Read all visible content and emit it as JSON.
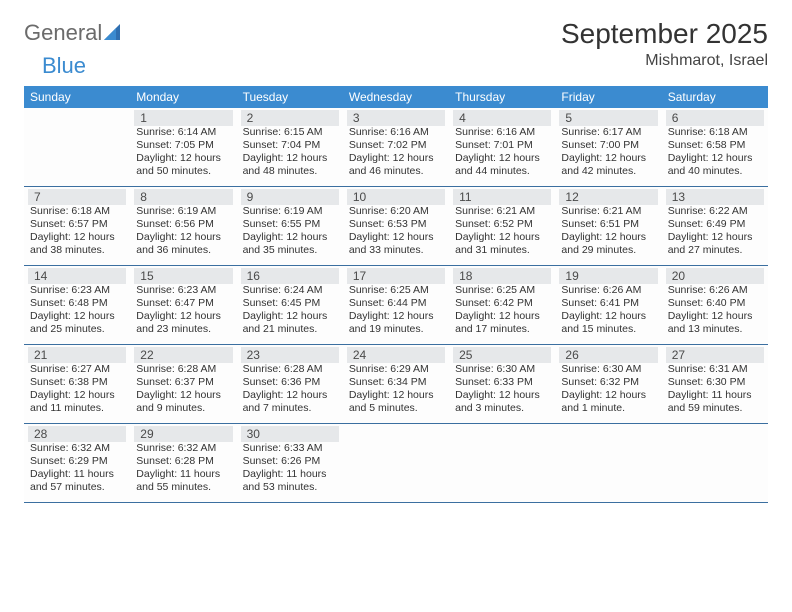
{
  "brand": {
    "general": "General",
    "blue": "Blue"
  },
  "title": "September 2025",
  "location": "Mishmarot, Israel",
  "colors": {
    "header_bg": "#3b8bd0",
    "header_text": "#ffffff",
    "row_divider": "#3b6fa0",
    "shade_bg": "#e6e8ea",
    "text": "#333333",
    "logo_gray": "#6b6b6b",
    "logo_blue": "#3b8bd0"
  },
  "dow": [
    "Sunday",
    "Monday",
    "Tuesday",
    "Wednesday",
    "Thursday",
    "Friday",
    "Saturday"
  ],
  "weeks": [
    [
      {
        "n": "",
        "lines": []
      },
      {
        "n": "1",
        "lines": [
          "Sunrise: 6:14 AM",
          "Sunset: 7:05 PM",
          "Daylight: 12 hours and 50 minutes."
        ]
      },
      {
        "n": "2",
        "lines": [
          "Sunrise: 6:15 AM",
          "Sunset: 7:04 PM",
          "Daylight: 12 hours and 48 minutes."
        ]
      },
      {
        "n": "3",
        "lines": [
          "Sunrise: 6:16 AM",
          "Sunset: 7:02 PM",
          "Daylight: 12 hours and 46 minutes."
        ]
      },
      {
        "n": "4",
        "lines": [
          "Sunrise: 6:16 AM",
          "Sunset: 7:01 PM",
          "Daylight: 12 hours and 44 minutes."
        ]
      },
      {
        "n": "5",
        "lines": [
          "Sunrise: 6:17 AM",
          "Sunset: 7:00 PM",
          "Daylight: 12 hours and 42 minutes."
        ]
      },
      {
        "n": "6",
        "lines": [
          "Sunrise: 6:18 AM",
          "Sunset: 6:58 PM",
          "Daylight: 12 hours and 40 minutes."
        ]
      }
    ],
    [
      {
        "n": "7",
        "lines": [
          "Sunrise: 6:18 AM",
          "Sunset: 6:57 PM",
          "Daylight: 12 hours and 38 minutes."
        ]
      },
      {
        "n": "8",
        "lines": [
          "Sunrise: 6:19 AM",
          "Sunset: 6:56 PM",
          "Daylight: 12 hours and 36 minutes."
        ]
      },
      {
        "n": "9",
        "lines": [
          "Sunrise: 6:19 AM",
          "Sunset: 6:55 PM",
          "Daylight: 12 hours and 35 minutes."
        ]
      },
      {
        "n": "10",
        "lines": [
          "Sunrise: 6:20 AM",
          "Sunset: 6:53 PM",
          "Daylight: 12 hours and 33 minutes."
        ]
      },
      {
        "n": "11",
        "lines": [
          "Sunrise: 6:21 AM",
          "Sunset: 6:52 PM",
          "Daylight: 12 hours and 31 minutes."
        ]
      },
      {
        "n": "12",
        "lines": [
          "Sunrise: 6:21 AM",
          "Sunset: 6:51 PM",
          "Daylight: 12 hours and 29 minutes."
        ]
      },
      {
        "n": "13",
        "lines": [
          "Sunrise: 6:22 AM",
          "Sunset: 6:49 PM",
          "Daylight: 12 hours and 27 minutes."
        ]
      }
    ],
    [
      {
        "n": "14",
        "lines": [
          "Sunrise: 6:23 AM",
          "Sunset: 6:48 PM",
          "Daylight: 12 hours and 25 minutes."
        ]
      },
      {
        "n": "15",
        "lines": [
          "Sunrise: 6:23 AM",
          "Sunset: 6:47 PM",
          "Daylight: 12 hours and 23 minutes."
        ]
      },
      {
        "n": "16",
        "lines": [
          "Sunrise: 6:24 AM",
          "Sunset: 6:45 PM",
          "Daylight: 12 hours and 21 minutes."
        ]
      },
      {
        "n": "17",
        "lines": [
          "Sunrise: 6:25 AM",
          "Sunset: 6:44 PM",
          "Daylight: 12 hours and 19 minutes."
        ]
      },
      {
        "n": "18",
        "lines": [
          "Sunrise: 6:25 AM",
          "Sunset: 6:42 PM",
          "Daylight: 12 hours and 17 minutes."
        ]
      },
      {
        "n": "19",
        "lines": [
          "Sunrise: 6:26 AM",
          "Sunset: 6:41 PM",
          "Daylight: 12 hours and 15 minutes."
        ]
      },
      {
        "n": "20",
        "lines": [
          "Sunrise: 6:26 AM",
          "Sunset: 6:40 PM",
          "Daylight: 12 hours and 13 minutes."
        ]
      }
    ],
    [
      {
        "n": "21",
        "lines": [
          "Sunrise: 6:27 AM",
          "Sunset: 6:38 PM",
          "Daylight: 12 hours and 11 minutes."
        ]
      },
      {
        "n": "22",
        "lines": [
          "Sunrise: 6:28 AM",
          "Sunset: 6:37 PM",
          "Daylight: 12 hours and 9 minutes."
        ]
      },
      {
        "n": "23",
        "lines": [
          "Sunrise: 6:28 AM",
          "Sunset: 6:36 PM",
          "Daylight: 12 hours and 7 minutes."
        ]
      },
      {
        "n": "24",
        "lines": [
          "Sunrise: 6:29 AM",
          "Sunset: 6:34 PM",
          "Daylight: 12 hours and 5 minutes."
        ]
      },
      {
        "n": "25",
        "lines": [
          "Sunrise: 6:30 AM",
          "Sunset: 6:33 PM",
          "Daylight: 12 hours and 3 minutes."
        ]
      },
      {
        "n": "26",
        "lines": [
          "Sunrise: 6:30 AM",
          "Sunset: 6:32 PM",
          "Daylight: 12 hours and 1 minute."
        ]
      },
      {
        "n": "27",
        "lines": [
          "Sunrise: 6:31 AM",
          "Sunset: 6:30 PM",
          "Daylight: 11 hours and 59 minutes."
        ]
      }
    ],
    [
      {
        "n": "28",
        "lines": [
          "Sunrise: 6:32 AM",
          "Sunset: 6:29 PM",
          "Daylight: 11 hours and 57 minutes."
        ]
      },
      {
        "n": "29",
        "lines": [
          "Sunrise: 6:32 AM",
          "Sunset: 6:28 PM",
          "Daylight: 11 hours and 55 minutes."
        ]
      },
      {
        "n": "30",
        "lines": [
          "Sunrise: 6:33 AM",
          "Sunset: 6:26 PM",
          "Daylight: 11 hours and 53 minutes."
        ]
      },
      {
        "n": "",
        "lines": []
      },
      {
        "n": "",
        "lines": []
      },
      {
        "n": "",
        "lines": []
      },
      {
        "n": "",
        "lines": []
      }
    ]
  ]
}
